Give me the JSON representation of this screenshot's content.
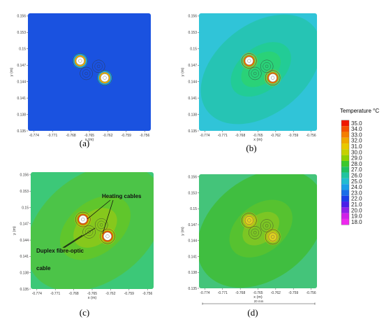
{
  "chart_data": [
    {
      "type": "heatmap",
      "panel": "(a)",
      "xlabel": "x (m)",
      "ylabel": "y (m)",
      "xticks": [
        "-0.774",
        "-0.771",
        "-0.768",
        "-0.765",
        "-0.762",
        "-0.759",
        "-0.756"
      ],
      "yticks": [
        "0.156",
        "0.153",
        "0.15",
        "0.147",
        "0.144",
        "0.141",
        "0.138",
        "0.135"
      ],
      "background": "#1a52e0",
      "contours": [],
      "cables": [
        {
          "x": -0.7665,
          "y": 0.1478,
          "rim": "#e8a800"
        },
        {
          "x": -0.7625,
          "y": 0.1447,
          "rim": "#e8a800"
        }
      ],
      "fibre": [
        {
          "x": -0.7635,
          "y": 0.1468
        },
        {
          "x": -0.7655,
          "y": 0.1455
        }
      ]
    },
    {
      "type": "heatmap",
      "panel": "(b)",
      "xlabel": "x (m)",
      "ylabel": "y (m)",
      "xticks": [
        "-0.774",
        "-0.771",
        "-0.768",
        "-0.765",
        "-0.762",
        "-0.759",
        "-0.756"
      ],
      "yticks": [
        "0.156",
        "0.153",
        "0.15",
        "0.147",
        "0.144",
        "0.141",
        "0.138",
        "0.135"
      ],
      "background": "#30c4d8",
      "contours": [
        {
          "rx": 0.0115,
          "ry": 0.0082,
          "color": "#26c4b4"
        },
        {
          "rx": 0.0058,
          "ry": 0.004,
          "color": "#22cc96"
        },
        {
          "rx": 0.0038,
          "ry": 0.0026,
          "color": "#2ad278"
        }
      ],
      "cables": [
        {
          "x": -0.7665,
          "y": 0.1478,
          "rim": "#e07000"
        },
        {
          "x": -0.7625,
          "y": 0.1447,
          "rim": "#e07000"
        }
      ],
      "fibre": [
        {
          "x": -0.7635,
          "y": 0.1468
        },
        {
          "x": -0.7655,
          "y": 0.1455
        }
      ]
    },
    {
      "type": "heatmap",
      "panel": "(c)",
      "xlabel": "x (m)",
      "ylabel": "y (m)",
      "xticks": [
        "-0.774",
        "-0.771",
        "-0.768",
        "-0.765",
        "-0.762",
        "-0.759",
        "-0.756"
      ],
      "yticks": [
        "0.156",
        "0.153",
        "0.15",
        "0.147",
        "0.144",
        "0.141",
        "0.138",
        "0.135"
      ],
      "background": "#3cc878",
      "contours": [
        {
          "rx": 0.0125,
          "ry": 0.0098,
          "color": "#4cc448"
        },
        {
          "rx": 0.0065,
          "ry": 0.0048,
          "color": "#60c62c"
        },
        {
          "rx": 0.004,
          "ry": 0.003,
          "color": "#86c81c"
        }
      ],
      "cables": [
        {
          "x": -0.7665,
          "y": 0.1478,
          "rim": "#e05c00"
        },
        {
          "x": -0.7625,
          "y": 0.1447,
          "rim": "#e05c00"
        }
      ],
      "fibre": [
        {
          "x": -0.7635,
          "y": 0.1468
        },
        {
          "x": -0.7655,
          "y": 0.1455
        }
      ],
      "annotations": [
        {
          "text": "Heating cables",
          "lines": [
            "Heating cables"
          ]
        },
        {
          "text": "Duplex fibre-optic cable",
          "lines": [
            "Duplex fibre-optic",
            "cable"
          ]
        }
      ]
    },
    {
      "type": "heatmap",
      "panel": "(d)",
      "xlabel": "x (m)",
      "ylabel": "y (m)",
      "xticks": [
        "-0.774",
        "-0.771",
        "-0.768",
        "-0.765",
        "-0.762",
        "-0.759",
        "-0.756"
      ],
      "yticks": [
        "0.156",
        "0.153",
        "0.15",
        "0.147",
        "0.144",
        "0.141",
        "0.138",
        "0.135"
      ],
      "background": "#44c47a",
      "contours": [
        {
          "rx": 0.012,
          "ry": 0.0095,
          "color": "#40be40"
        },
        {
          "rx": 0.006,
          "ry": 0.0045,
          "color": "#56c230"
        },
        {
          "rx": 0.0035,
          "ry": 0.0026,
          "color": "#7cc624"
        }
      ],
      "cables": [
        {
          "x": -0.7665,
          "y": 0.1478,
          "rim": "#c8c018"
        },
        {
          "x": -0.7625,
          "y": 0.1447,
          "rim": "#c8c018"
        }
      ],
      "fibre": [
        {
          "x": -0.7635,
          "y": 0.1468
        },
        {
          "x": -0.7655,
          "y": 0.1455
        }
      ],
      "scalebar": "20 mm"
    }
  ],
  "legend": {
    "title": "Temperature °C",
    "values": [
      "35.0",
      "34.0",
      "33.0",
      "32.0",
      "31.0",
      "30.0",
      "29.0",
      "28.0",
      "27.0",
      "26.0",
      "25.0",
      "24.0",
      "23.0",
      "22.0",
      "21.0",
      "20.0",
      "19.0",
      "18.0"
    ],
    "colors": [
      "#f01800",
      "#f45000",
      "#f47e00",
      "#f0a800",
      "#e8c800",
      "#c6d000",
      "#8ed000",
      "#3cc82c",
      "#20c060",
      "#20c4a0",
      "#22bcd0",
      "#1a9ee8",
      "#1a6ee8",
      "#1c3ee8",
      "#4a1ee8",
      "#9020e8",
      "#d020e8",
      "#ee28ee"
    ]
  }
}
